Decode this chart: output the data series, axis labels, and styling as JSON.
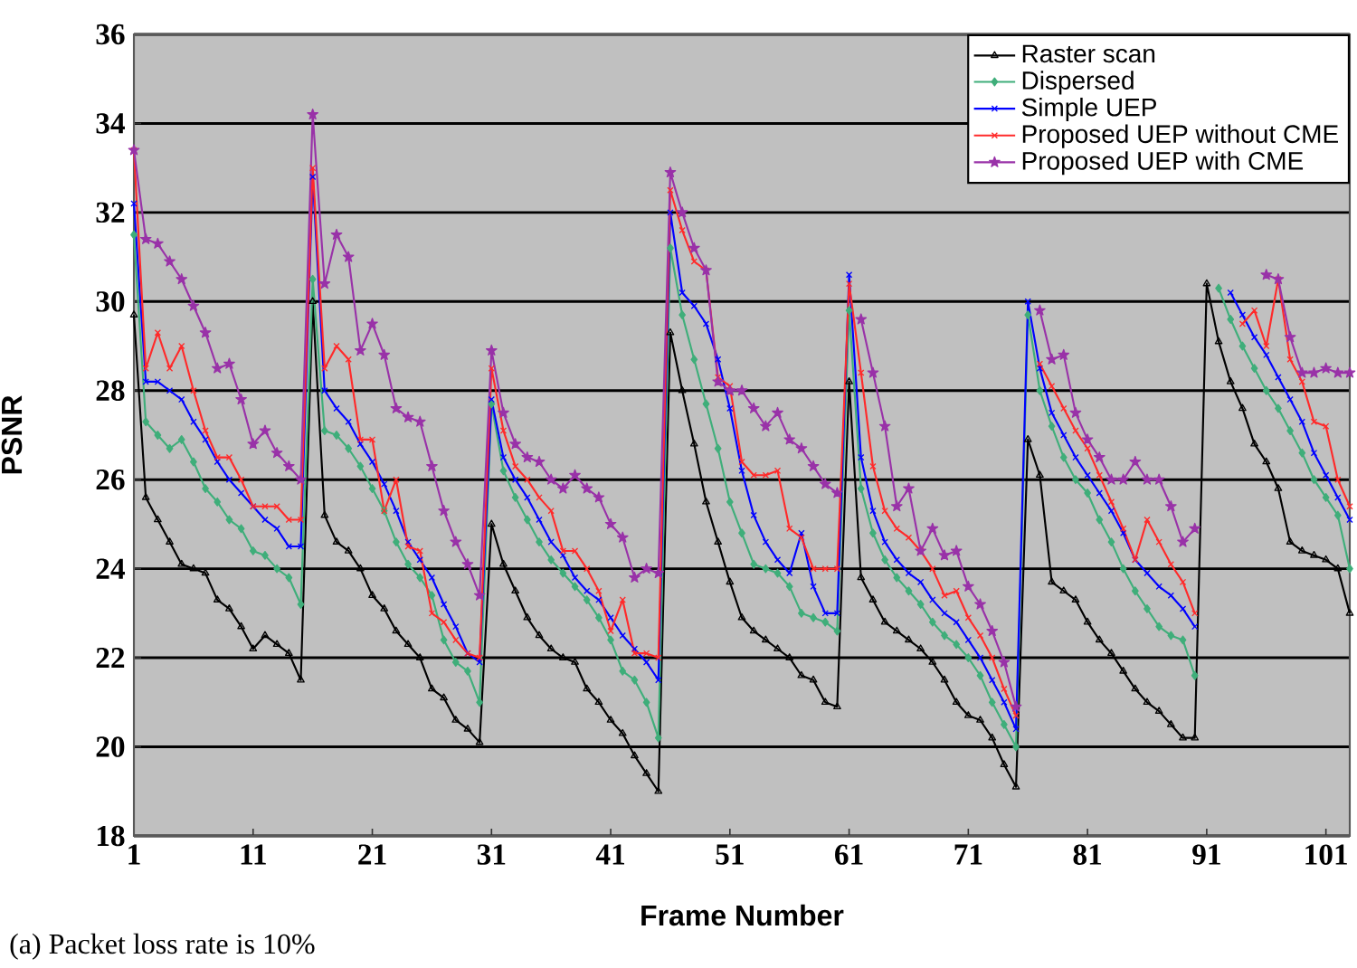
{
  "chart_data": {
    "type": "line",
    "xlabel": "Frame Number",
    "ylabel": "PSNR",
    "annotations": [
      "(a)  Packet loss rate is 10%"
    ],
    "x": [
      1,
      2,
      3,
      4,
      5,
      6,
      7,
      8,
      9,
      10,
      11,
      12,
      13,
      14,
      15,
      16,
      17,
      18,
      19,
      20,
      21,
      22,
      23,
      24,
      25,
      26,
      27,
      28,
      29,
      30,
      31,
      32,
      33,
      34,
      35,
      36,
      37,
      38,
      39,
      40,
      41,
      42,
      43,
      44,
      45,
      46,
      47,
      48,
      49,
      50,
      51,
      52,
      53,
      54,
      55,
      56,
      57,
      58,
      59,
      60,
      61,
      62,
      63,
      64,
      65,
      66,
      67,
      68,
      69,
      70,
      71,
      72,
      73,
      74,
      75,
      76,
      77,
      78,
      79,
      80,
      81,
      82,
      83,
      84,
      85,
      86,
      87,
      88,
      89,
      90,
      91,
      92,
      93,
      94,
      95,
      96,
      97,
      98,
      99,
      100,
      101,
      102,
      103
    ],
    "xlim": [
      1,
      103
    ],
    "xticks": [
      1,
      11,
      21,
      31,
      41,
      51,
      61,
      71,
      81,
      91,
      101
    ],
    "ylim": [
      18,
      36
    ],
    "yticks": [
      18,
      20,
      22,
      24,
      26,
      28,
      30,
      32,
      34,
      36
    ],
    "grid": "y",
    "legend": "top right",
    "series": [
      {
        "name": "Raster scan",
        "color": "#000000",
        "marker": "triangle",
        "values": [
          29.7,
          25.6,
          25.1,
          24.6,
          24.1,
          24.0,
          23.9,
          23.3,
          23.1,
          22.7,
          22.2,
          22.5,
          22.3,
          22.1,
          21.5,
          30.0,
          25.2,
          24.6,
          24.4,
          24.0,
          23.4,
          23.1,
          22.6,
          22.3,
          22.0,
          21.3,
          21.1,
          20.6,
          20.4,
          20.1,
          25.0,
          24.1,
          23.5,
          22.9,
          22.5,
          22.2,
          22.0,
          21.9,
          21.3,
          21.0,
          20.6,
          20.3,
          19.8,
          19.4,
          19.0,
          29.3,
          28.0,
          26.8,
          25.5,
          24.6,
          23.7,
          22.9,
          22.6,
          22.4,
          22.2,
          22.0,
          21.6,
          21.5,
          21.0,
          20.9,
          28.2,
          23.8,
          23.3,
          22.8,
          22.6,
          22.4,
          22.2,
          21.9,
          21.5,
          21.0,
          20.7,
          20.6,
          20.2,
          19.6,
          19.1,
          26.9,
          26.1,
          23.7,
          23.5,
          23.3,
          22.8,
          22.4,
          22.1,
          21.7,
          21.3,
          21.0,
          20.8,
          20.5,
          20.2,
          20.2,
          30.4,
          29.1,
          28.2,
          27.6,
          26.8,
          26.4,
          25.8,
          24.6,
          24.4,
          24.3,
          24.2,
          24.0,
          23.0
        ]
      },
      {
        "name": "Dispersed",
        "color": "#3fae7a",
        "marker": "diamond",
        "values": [
          31.5,
          27.3,
          27.0,
          26.7,
          26.9,
          26.4,
          25.8,
          25.5,
          25.1,
          24.9,
          24.4,
          24.3,
          24.0,
          23.8,
          23.2,
          30.5,
          27.1,
          27.0,
          26.7,
          26.3,
          25.8,
          25.3,
          24.6,
          24.1,
          23.8,
          23.4,
          22.4,
          21.9,
          21.7,
          21.0,
          27.7,
          26.2,
          25.6,
          25.1,
          24.6,
          24.2,
          23.9,
          23.6,
          23.3,
          22.9,
          22.4,
          21.7,
          21.5,
          21.0,
          20.2,
          31.2,
          29.7,
          28.7,
          27.7,
          26.7,
          25.5,
          24.8,
          24.1,
          24.0,
          23.9,
          23.6,
          23.0,
          22.9,
          22.8,
          22.6,
          29.8,
          25.8,
          24.8,
          24.2,
          23.8,
          23.5,
          23.2,
          22.8,
          22.5,
          22.3,
          22.0,
          21.6,
          21.0,
          20.5,
          20.0,
          29.7,
          28.0,
          27.2,
          26.5,
          26.0,
          25.7,
          25.1,
          24.6,
          24.0,
          23.5,
          23.1,
          22.7,
          22.5,
          22.4,
          21.6,
          null,
          30.3,
          29.6,
          29.0,
          28.5,
          28.0,
          27.6,
          27.1,
          26.6,
          26.0,
          25.6,
          25.2,
          24.0
        ]
      },
      {
        "name": "Simple UEP",
        "color": "#0000ff",
        "marker": "cross",
        "values": [
          32.2,
          28.2,
          28.2,
          28.0,
          27.8,
          27.3,
          26.9,
          26.4,
          26.0,
          25.7,
          25.4,
          25.1,
          24.9,
          24.5,
          24.5,
          32.8,
          28.0,
          27.6,
          27.3,
          26.8,
          26.4,
          25.9,
          25.3,
          24.6,
          24.2,
          23.8,
          23.2,
          22.7,
          22.1,
          21.9,
          27.8,
          26.5,
          26.0,
          25.6,
          25.1,
          24.6,
          24.3,
          23.8,
          23.5,
          23.3,
          22.9,
          22.5,
          22.2,
          21.9,
          21.5,
          32.0,
          30.2,
          29.9,
          29.5,
          28.7,
          27.6,
          26.2,
          25.2,
          24.6,
          24.2,
          23.9,
          24.8,
          23.6,
          23.0,
          23.0,
          30.6,
          26.5,
          25.3,
          24.6,
          24.2,
          23.9,
          23.7,
          23.3,
          23.0,
          22.8,
          22.4,
          22.0,
          21.5,
          21.0,
          20.4,
          30.0,
          28.5,
          27.5,
          27.0,
          26.5,
          26.1,
          25.7,
          25.3,
          24.8,
          24.2,
          23.9,
          23.6,
          23.4,
          23.1,
          22.7,
          null,
          null,
          30.2,
          29.7,
          29.2,
          28.8,
          28.3,
          27.8,
          27.3,
          26.6,
          26.1,
          25.6,
          25.1
        ]
      },
      {
        "name": "Proposed UEP without CME",
        "color": "#ff2a2a",
        "marker": "cross",
        "values": [
          33.4,
          28.5,
          29.3,
          28.5,
          29.0,
          28.0,
          27.1,
          26.5,
          26.5,
          26.0,
          25.4,
          25.4,
          25.4,
          25.1,
          25.1,
          33.0,
          28.5,
          29.0,
          28.7,
          26.9,
          26.9,
          25.3,
          26.0,
          24.5,
          24.4,
          23.0,
          22.8,
          22.4,
          22.1,
          22.0,
          28.5,
          27.1,
          26.3,
          26.0,
          25.6,
          25.3,
          24.4,
          24.4,
          24.0,
          23.5,
          22.6,
          23.3,
          22.1,
          22.1,
          22.0,
          32.5,
          31.6,
          30.9,
          30.7,
          28.3,
          28.1,
          26.4,
          26.1,
          26.1,
          26.2,
          24.9,
          24.7,
          24.0,
          24.0,
          24.0,
          30.4,
          28.4,
          26.3,
          25.3,
          24.9,
          24.7,
          24.4,
          24.0,
          23.4,
          23.5,
          22.9,
          22.5,
          22.0,
          21.3,
          20.7,
          null,
          28.6,
          28.1,
          27.6,
          27.1,
          26.7,
          26.1,
          25.5,
          24.9,
          24.2,
          25.1,
          24.6,
          24.1,
          23.7,
          23.0,
          null,
          null,
          null,
          29.5,
          29.8,
          29.0,
          30.5,
          28.7,
          28.2,
          27.3,
          27.2,
          26.0,
          25.4
        ]
      },
      {
        "name": "Proposed UEP with CME",
        "color": "#9932a8",
        "marker": "star",
        "values": [
          33.4,
          31.4,
          31.3,
          30.9,
          30.5,
          29.9,
          29.3,
          28.5,
          28.6,
          27.8,
          26.8,
          27.1,
          26.6,
          26.3,
          26.0,
          34.2,
          30.4,
          31.5,
          31.0,
          28.9,
          29.5,
          28.8,
          27.6,
          27.4,
          27.3,
          26.3,
          25.3,
          24.6,
          24.1,
          23.4,
          28.9,
          27.5,
          26.8,
          26.5,
          26.4,
          26.0,
          25.8,
          26.1,
          25.8,
          25.6,
          25.0,
          24.7,
          23.8,
          24.0,
          23.9,
          32.9,
          32.0,
          31.2,
          30.7,
          28.2,
          28.0,
          28.0,
          27.6,
          27.2,
          27.5,
          26.9,
          26.7,
          26.3,
          25.9,
          25.7,
          null,
          29.6,
          28.4,
          27.2,
          25.4,
          25.8,
          24.4,
          24.9,
          24.3,
          24.4,
          23.6,
          23.2,
          22.6,
          21.9,
          20.9,
          null,
          29.8,
          28.7,
          28.8,
          27.5,
          26.9,
          26.5,
          26.0,
          26.0,
          26.4,
          26.0,
          26.0,
          25.4,
          24.6,
          24.9,
          null,
          null,
          null,
          null,
          null,
          30.6,
          30.5,
          29.2,
          28.4,
          28.4,
          28.5,
          28.4,
          28.4
        ]
      }
    ]
  }
}
